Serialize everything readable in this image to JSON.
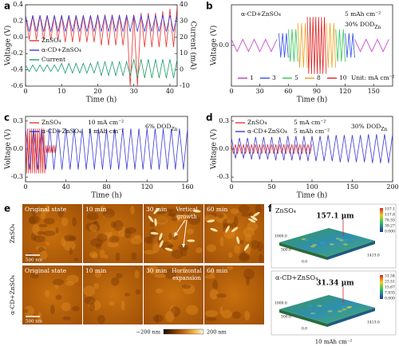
{
  "chart_data": [
    {
      "type": "line",
      "label": "a",
      "xlabel": "Time (h)",
      "ylabel": "Voltage (V)",
      "y2label": "Current (mA)",
      "xlim": [
        0,
        42
      ],
      "xticks": [
        0,
        10,
        20,
        30,
        40
      ],
      "ylim": [
        -0.6,
        0.4
      ],
      "yticks": [
        -0.6,
        -0.4,
        -0.2,
        {
          "value": 0,
          "label": "0.0"
        },
        0.2,
        0.4
      ],
      "y2lim": [
        -10,
        40
      ],
      "y2ticks": [
        -10,
        0,
        10,
        20,
        30,
        40
      ],
      "legend": "center left",
      "series": [
        {
          "name": "ZnSO₄",
          "color": "#e8322d",
          "x": [
            0,
            1,
            2,
            3,
            4,
            5,
            6,
            7,
            8,
            9,
            10,
            11,
            12,
            13,
            14,
            15,
            16,
            17,
            18,
            19,
            20,
            21,
            22,
            23,
            24,
            25,
            26,
            27,
            28,
            29,
            30,
            31,
            32,
            33,
            34,
            35,
            36,
            37,
            38,
            39,
            40,
            41,
            42
          ],
          "values": [
            0.27,
            -0.03,
            0.27,
            -0.03,
            0.27,
            -0.03,
            0.27,
            -0.03,
            0.27,
            -0.03,
            0.27,
            -0.06,
            0.27,
            -0.06,
            0.27,
            -0.06,
            0.27,
            -0.06,
            0.27,
            -0.06,
            0.28,
            -0.1,
            0.28,
            -0.1,
            0.28,
            -0.1,
            0.28,
            -0.1,
            0.28,
            -0.6,
            0.28,
            -0.6,
            0.3,
            -0.12,
            0.3,
            -0.12,
            0.3,
            -0.12,
            0.32,
            -0.12,
            0.35,
            -0.12,
            0.38
          ]
        },
        {
          "name": "α-CD+ZnSO₄",
          "color": "#3a3ad8",
          "x": [
            0,
            1,
            2,
            3,
            4,
            5,
            6,
            7,
            8,
            9,
            10,
            11,
            12,
            13,
            14,
            15,
            16,
            17,
            18,
            19,
            20,
            21,
            22,
            23,
            24,
            25,
            26,
            27,
            28,
            29,
            30,
            31,
            32,
            33,
            34,
            35,
            36,
            37,
            38,
            39,
            40,
            41,
            42
          ],
          "values": [
            0.27,
            0.07,
            0.27,
            0.07,
            0.27,
            0.07,
            0.27,
            0.07,
            0.27,
            0.07,
            0.27,
            0.07,
            0.27,
            0.07,
            0.27,
            0.07,
            0.27,
            0.07,
            0.27,
            0.07,
            0.27,
            0.07,
            0.27,
            0.07,
            0.27,
            0.07,
            0.27,
            0.07,
            0.27,
            0.07,
            0.27,
            0.07,
            0.27,
            0.07,
            0.27,
            0.07,
            0.27,
            0.07,
            0.27,
            0.07,
            0.27,
            0.07,
            0.27
          ]
        },
        {
          "name": "Current",
          "color": "#1a9a6a",
          "axis": "y2",
          "x": [
            0,
            1,
            2,
            3,
            4,
            5,
            6,
            7,
            8,
            9,
            10,
            11,
            12,
            13,
            14,
            15,
            16,
            17,
            18,
            19,
            20,
            21,
            22,
            23,
            24,
            25,
            26,
            27,
            28,
            29,
            30,
            31,
            32,
            33,
            34,
            35,
            36,
            37,
            38,
            39,
            40,
            41,
            42
          ],
          "values": [
            3,
            -1,
            3,
            -1,
            3,
            -1,
            3,
            -1,
            3,
            -1,
            4,
            -2,
            4,
            -2,
            4,
            -2,
            4,
            -2,
            4,
            -2,
            5,
            -3.5,
            5,
            -3.5,
            5,
            -3.5,
            5,
            -3.5,
            5,
            -3.5,
            6.5,
            -5,
            6.5,
            -5,
            6.5,
            -5,
            6.5,
            -5,
            6.5,
            -5,
            6.5,
            -5,
            6.5
          ]
        }
      ]
    },
    {
      "type": "line",
      "label": "b",
      "xlabel": "Time (h)",
      "ylabel": "Voltage (V)",
      "xlim": [
        0,
        170
      ],
      "xticks": [
        0,
        30,
        60,
        90,
        120,
        150
      ],
      "ylim": [
        -0.2,
        0.2
      ],
      "yticks": [
        {
          "value": 0,
          "label": "0.0"
        }
      ],
      "legend": "lower center",
      "annotations": [
        {
          "text": "α-CD+ZnSO₄"
        },
        {
          "text": "5 mAh cm⁻²"
        },
        {
          "text": "30% DOD",
          "sub": "Zn"
        },
        {
          "text": "Unit: mA cm⁻²"
        }
      ],
      "series": [
        {
          "name": "1",
          "color": "#c03cc8",
          "x": [
            0,
            6,
            12,
            18,
            24,
            30,
            36,
            42,
            48,
            90,
            130,
            136,
            142,
            148,
            154,
            160,
            166
          ],
          "values": [
            0.03,
            -0.03,
            0.03,
            -0.03,
            0.03,
            -0.03,
            0.03,
            -0.03,
            0.03,
            null,
            0.03,
            -0.03,
            0.03,
            -0.03,
            0.03,
            -0.03,
            0.03
          ]
        },
        {
          "name": "3",
          "color": "#3050f0",
          "x": [
            50,
            52,
            54,
            56,
            58,
            60,
            90,
            120,
            122,
            124,
            126,
            128,
            130
          ],
          "values": [
            0.06,
            -0.06,
            0.06,
            -0.06,
            0.06,
            -0.06,
            null,
            0.06,
            -0.06,
            0.06,
            -0.06,
            0.06,
            -0.06
          ]
        },
        {
          "name": "5",
          "color": "#30c850",
          "x": [
            60,
            62,
            64,
            66,
            68,
            70,
            90,
            110,
            112,
            114,
            116,
            118,
            120
          ],
          "values": [
            0.08,
            -0.08,
            0.08,
            -0.08,
            0.08,
            -0.08,
            null,
            0.08,
            -0.08,
            0.08,
            -0.08,
            0.08,
            -0.08
          ]
        },
        {
          "name": "8",
          "color": "#f0a020",
          "x": [
            70,
            72,
            74,
            76,
            78,
            80,
            90,
            100,
            102,
            104,
            106,
            108,
            110
          ],
          "values": [
            0.11,
            -0.11,
            0.11,
            -0.11,
            0.11,
            -0.11,
            null,
            0.11,
            -0.11,
            0.11,
            -0.11,
            0.11,
            -0.11
          ]
        },
        {
          "name": "10",
          "color": "#e02020",
          "x": [
            80,
            81.5,
            83,
            84.5,
            86,
            87.5,
            89,
            90.5,
            92,
            93.5,
            95,
            96.5,
            98,
            100
          ],
          "values": [
            0.14,
            -0.14,
            0.14,
            -0.14,
            0.14,
            -0.14,
            0.14,
            -0.14,
            0.14,
            -0.14,
            0.14,
            -0.14,
            0.14,
            -0.14
          ]
        }
      ]
    },
    {
      "type": "line",
      "label": "c",
      "xlabel": "Time (h)",
      "ylabel": "Voltage (V)",
      "xlim": [
        0,
        160
      ],
      "xticks": [
        0,
        40,
        80,
        120,
        160
      ],
      "ylim": [
        -0.35,
        0.35
      ],
      "yticks": [
        -0.3,
        {
          "value": 0,
          "label": "0.0"
        },
        0.3
      ],
      "legend": "upper left",
      "annotations": [
        {
          "text": "10 mA cm⁻²"
        },
        {
          "text": "1 mAh cm⁻²"
        },
        {
          "text": "6% DOD",
          "sub": "Zn"
        }
      ],
      "series": [
        {
          "name": "ZnSO₄",
          "color": "#e8322d",
          "x": [
            0,
            1,
            2,
            3,
            4,
            5,
            6,
            7,
            8,
            9,
            10,
            11,
            12,
            13,
            14,
            15,
            16,
            17,
            18,
            19,
            20,
            21,
            22,
            23,
            24,
            25,
            26,
            27,
            28,
            29,
            30
          ],
          "values": [
            0.22,
            -0.26,
            0.22,
            -0.26,
            0.22,
            -0.26,
            0.22,
            -0.26,
            0.22,
            -0.26,
            0.22,
            -0.26,
            0.22,
            -0.26,
            0.22,
            -0.26,
            0.22,
            -0.26,
            0.22,
            -0.26,
            0.04,
            -0.04,
            0.04,
            -0.04,
            0.04,
            -0.04,
            0.04,
            -0.04,
            0.04,
            -0.04,
            0.04
          ]
        },
        {
          "name": "α-CD+ZnSO₄",
          "color": "#3a3ad8",
          "x": [
            0,
            4,
            8,
            12,
            16,
            20,
            24,
            28,
            32,
            36,
            40,
            44,
            48,
            52,
            56,
            60,
            64,
            68,
            72,
            76,
            80,
            84,
            88,
            92,
            96,
            100,
            104,
            108,
            112,
            116,
            120,
            124,
            128,
            132,
            136,
            140,
            144,
            148,
            152,
            156,
            160
          ],
          "values": [
            0.22,
            -0.22,
            0.22,
            -0.22,
            0.22,
            -0.22,
            0.22,
            -0.22,
            0.22,
            -0.22,
            0.22,
            -0.22,
            0.22,
            -0.22,
            0.22,
            -0.22,
            0.22,
            -0.22,
            0.22,
            -0.22,
            0.22,
            -0.22,
            0.22,
            -0.22,
            0.22,
            -0.22,
            0.22,
            -0.22,
            0.22,
            -0.22,
            0.22,
            -0.22,
            0.22,
            -0.22,
            0.22,
            -0.22,
            0.22,
            -0.22,
            0.22,
            -0.22,
            0.22
          ]
        }
      ]
    },
    {
      "type": "line",
      "label": "d",
      "xlabel": "Time (h)",
      "ylabel": "Voltage (V)",
      "xlim": [
        0,
        200
      ],
      "xticks": [
        0,
        50,
        100,
        150,
        200
      ],
      "ylim": [
        -0.35,
        0.35
      ],
      "yticks": [
        -0.3,
        {
          "value": 0,
          "label": "0.0"
        },
        0.3
      ],
      "legend": "upper left",
      "annotations": [
        {
          "text": "5 mA cm⁻²"
        },
        {
          "text": "5 mAh cm⁻²"
        },
        {
          "text": "30% DOD",
          "sub": "Zn"
        }
      ],
      "series": [
        {
          "name": "ZnSO₄",
          "color": "#e8322d",
          "x": [
            0,
            2.5,
            5,
            7.5,
            10,
            12.5,
            15,
            17.5,
            20,
            22.5,
            25,
            27.5,
            30,
            32.5,
            35,
            37.5,
            40,
            42.5,
            45,
            47.5,
            50,
            52.5,
            55,
            57.5,
            60,
            62.5,
            65,
            67.5,
            70,
            72.5,
            75,
            77.5,
            80,
            82.5,
            85,
            87.5,
            90,
            92.5,
            95,
            97.5,
            100
          ],
          "values": [
            0.05,
            -0.05,
            0.05,
            -0.05,
            0.05,
            -0.05,
            0.05,
            -0.05,
            0.05,
            -0.05,
            0.05,
            -0.05,
            0.05,
            -0.05,
            0.05,
            -0.05,
            0.05,
            -0.05,
            0.05,
            -0.05,
            0.05,
            -0.05,
            0.05,
            -0.05,
            0.05,
            -0.05,
            0.05,
            -0.05,
            0.05,
            -0.05,
            0.05,
            -0.05,
            0.05,
            -0.05,
            0.05,
            -0.05,
            0.05,
            -0.05,
            0.05,
            -0.05,
            0.05
          ]
        },
        {
          "name": "α-CD+ZnSO₄",
          "color": "#3a3ad8",
          "x": [
            0,
            5,
            10,
            15,
            20,
            25,
            30,
            35,
            40,
            45,
            50,
            55,
            60,
            65,
            70,
            75,
            80,
            85,
            90,
            95,
            100,
            105,
            110,
            115,
            120,
            125,
            130,
            135,
            140,
            145,
            150,
            155,
            160,
            165,
            170,
            175,
            180,
            185,
            190,
            195,
            200
          ],
          "values": [
            0.12,
            -0.1,
            0.12,
            -0.1,
            0.12,
            -0.11,
            0.13,
            -0.11,
            0.13,
            -0.11,
            0.13,
            -0.12,
            0.13,
            -0.12,
            0.14,
            -0.12,
            0.14,
            -0.12,
            0.14,
            -0.13,
            0.14,
            -0.13,
            0.14,
            -0.13,
            0.15,
            -0.13,
            0.15,
            -0.14,
            0.15,
            -0.14,
            0.15,
            -0.14,
            0.15,
            -0.14,
            0.16,
            -0.15,
            0.16,
            -0.15,
            0.16,
            -0.15,
            0.16
          ]
        }
      ]
    }
  ],
  "afm_images": {
    "label": "e",
    "rows": [
      {
        "name": "ZnSO₄",
        "scale_bar": "500 nm",
        "frames": [
          "Original state",
          "10 min",
          "30 min",
          "60 min"
        ],
        "annotation": [
          "Vertical",
          "growth"
        ]
      },
      {
        "name": "α-CD+ZnSO₄",
        "scale_bar": "500 nm",
        "frames": [
          "Original state",
          "10 min",
          "30 min",
          "60 min"
        ],
        "annotation": [
          "Horizontal",
          "expansion"
        ]
      }
    ],
    "colorbar": {
      "min": "−200 nm",
      "max": "200 nm"
    }
  },
  "surface_images": {
    "label": "f",
    "panels": [
      {
        "name": "ZnSO₄",
        "height": "157.1 μm",
        "scale": [
          "157.1",
          "117.8",
          "78.55",
          "39.27",
          "0.000"
        ],
        "axes": [
          "1000.0",
          "500.0",
          "0.0",
          "1413.0"
        ]
      },
      {
        "name": "α-CD+ZnSO₄",
        "height": "31.34 μm",
        "scale": [
          "31.34",
          "23.51",
          "15.67",
          "7.835",
          "0.000"
        ],
        "axes": [
          "1000.0",
          "500.0",
          "0.0",
          "1413.0"
        ]
      }
    ],
    "footer": "10 mAh cm⁻²"
  }
}
